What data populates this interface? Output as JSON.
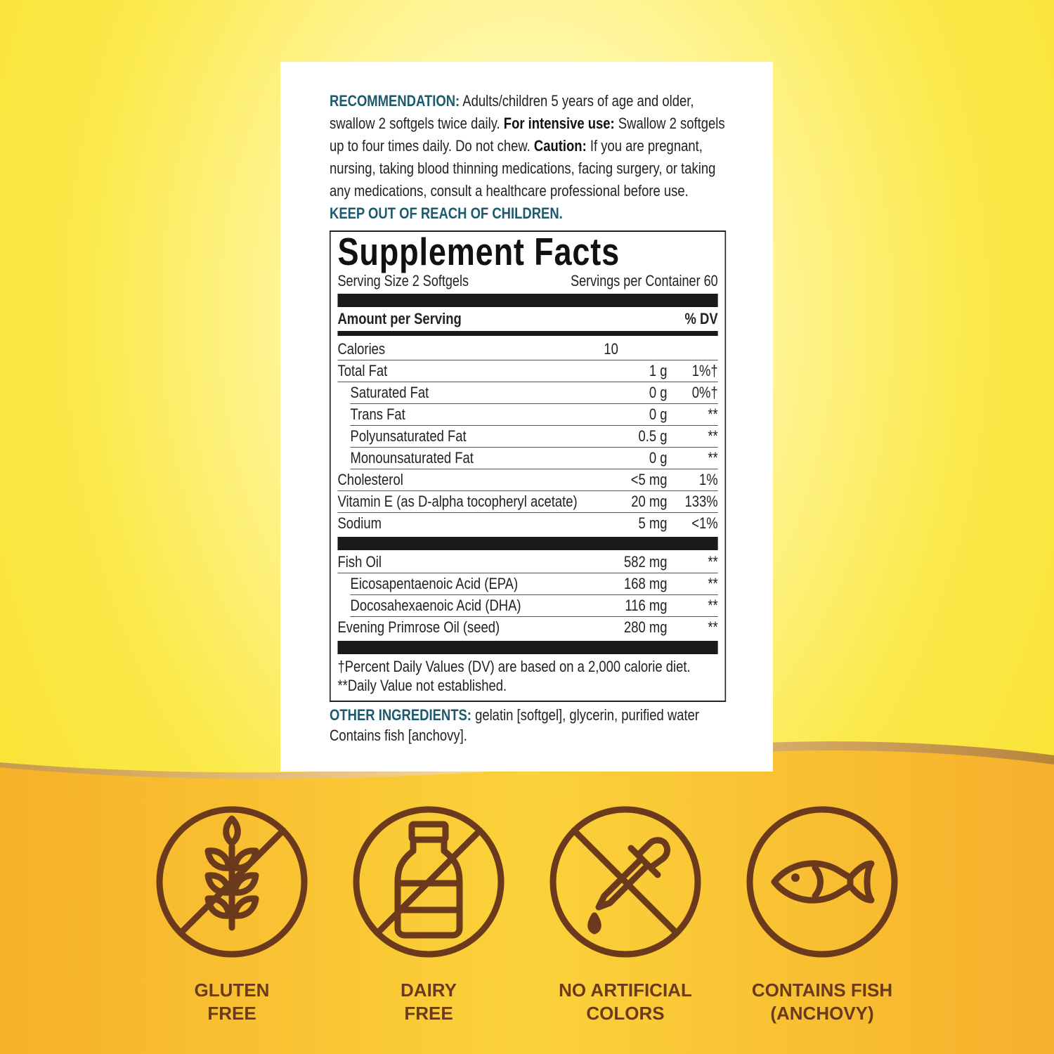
{
  "recommendation": {
    "label": "RECOMMENDATION:",
    "text1": " Adults/children 5 years of age and older, swallow 2 softgels twice daily. ",
    "intensive_label": "For intensive use:",
    "text2": " Swallow 2 softgels up to four times daily. Do not chew. ",
    "caution_label": "Caution:",
    "text3": " If you are pregnant, nursing, taking blood thinning medications, facing surgery, or taking any medications, consult a healthcare professional before use. ",
    "warning": "KEEP OUT OF REACH OF CHILDREN."
  },
  "facts": {
    "title": "Supplement Facts",
    "serving_size": "Serving Size 2 Softgels",
    "servings_per_container": "Servings per Container 60",
    "amount_header": "Amount per Serving",
    "dv_header": "% DV",
    "rows": [
      {
        "name": "Calories",
        "amount": "10",
        "dv": ""
      },
      {
        "name": "Total Fat",
        "amount": "1 g",
        "dv": "1%†"
      },
      {
        "name": "Saturated Fat",
        "amount": "0 g",
        "dv": "0%†"
      },
      {
        "name": "Trans Fat",
        "amount": "0 g",
        "dv": "**"
      },
      {
        "name": "Polyunsaturated Fat",
        "amount": "0.5 g",
        "dv": "**"
      },
      {
        "name": "Monounsaturated Fat",
        "amount": "0 g",
        "dv": "**"
      },
      {
        "name": "Cholesterol",
        "amount": "<5 mg",
        "dv": "1%"
      },
      {
        "name": "Vitamin E (as D-alpha tocopheryl acetate)",
        "amount": "20 mg",
        "dv": "133%"
      },
      {
        "name": "Sodium",
        "amount": "5 mg",
        "dv": "<1%"
      }
    ],
    "rows2": [
      {
        "name": "Fish Oil",
        "amount": "582 mg",
        "dv": "**"
      },
      {
        "name": "Eicosapentaenoic Acid (EPA)",
        "amount": "168 mg",
        "dv": "**"
      },
      {
        "name": "Docosahexaenoic Acid (DHA)",
        "amount": "116 mg",
        "dv": "**"
      },
      {
        "name": "Evening Primrose Oil (seed)",
        "amount": "280 mg",
        "dv": "**"
      }
    ],
    "footnote": "†Percent Daily Values (DV) are based on a 2,000 calorie diet. **Daily Value not established."
  },
  "other_ingredients": {
    "label": "OTHER INGREDIENTS:",
    "text": " gelatin [softgel], glycerin, purified water",
    "contains": "Contains fish [anchovy]."
  },
  "badges": [
    {
      "icon": "wheat-crossed-icon",
      "line1": "GLUTEN",
      "line2": "FREE"
    },
    {
      "icon": "milk-bottle-crossed-icon",
      "line1": "DAIRY",
      "line2": "FREE"
    },
    {
      "icon": "dropper-crossed-icon",
      "line1": "NO ARTIFICIAL",
      "line2": "COLORS"
    },
    {
      "icon": "fish-icon",
      "line1": "CONTAINS FISH",
      "line2": "(ANCHOVY)"
    }
  ],
  "colors": {
    "accent_teal": "#1d5a6e",
    "icon_brown": "#6b3a1c",
    "band_orange": "#f7b52e",
    "background_yellow": "#f7df2a"
  }
}
